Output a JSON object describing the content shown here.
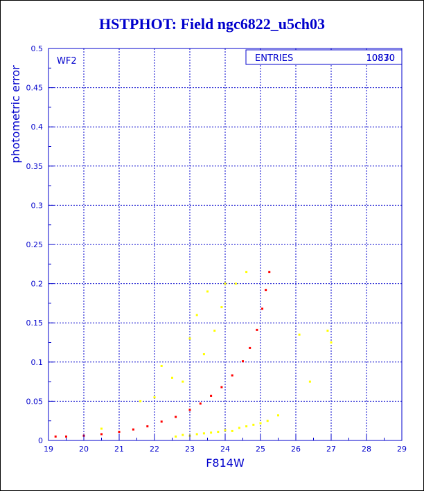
{
  "page_title": "HSTPHOT: Field ngc6822_u5ch03",
  "chart_data": {
    "type": "scatter",
    "title": "HSTPHOT: Field ngc6822_u5ch03",
    "panel_label": "WF2",
    "stats_box": {
      "label": "ENTRIES",
      "value": "10830",
      "overprint": "10870"
    },
    "xlabel": "F814W",
    "ylabel": "photometric error",
    "xlim": [
      19,
      29
    ],
    "ylim": [
      0,
      0.5
    ],
    "xticks": [
      "19",
      "20",
      "21",
      "22",
      "23",
      "24",
      "25",
      "26",
      "27",
      "28",
      "29"
    ],
    "yticks": [
      "0",
      "0.05",
      "0.1",
      "0.15",
      "0.2",
      "0.25",
      "0.3",
      "0.35",
      "0.4",
      "0.45",
      "0.5"
    ],
    "grid": true,
    "colors": {
      "axis": "#0000cc",
      "grid": "#0000cc",
      "primary": "#ff0000",
      "secondary": "#ffff00",
      "outlier": "#cccc00"
    },
    "series": [
      {
        "color": "#ff0000",
        "x": [
          19.2,
          19.5,
          20.0,
          20.5,
          21.0,
          21.4,
          21.8,
          22.2,
          22.6,
          23.0,
          23.3,
          23.6,
          23.9,
          24.2,
          24.5,
          24.7,
          24.9,
          25.05,
          25.15,
          25.25
        ],
        "y": [
          0.005,
          0.005,
          0.006,
          0.008,
          0.011,
          0.014,
          0.018,
          0.024,
          0.03,
          0.039,
          0.047,
          0.057,
          0.068,
          0.083,
          0.101,
          0.118,
          0.141,
          0.168,
          0.192,
          0.215
        ]
      },
      {
        "color": "#ffff00",
        "x": [
          20.5,
          21.6,
          22.0,
          22.2,
          22.5,
          22.8,
          23.0,
          23.2,
          23.4,
          23.5,
          23.7,
          23.9,
          24.0,
          24.3,
          24.6,
          22.6,
          22.8,
          23.0,
          23.2,
          23.4,
          23.6,
          23.8,
          24.0,
          24.2,
          24.4,
          24.6,
          24.8,
          25.0,
          25.2,
          25.5,
          26.1,
          26.4,
          26.9,
          27.0
        ],
        "y": [
          0.015,
          0.05,
          0.055,
          0.095,
          0.08,
          0.075,
          0.13,
          0.16,
          0.11,
          0.19,
          0.14,
          0.17,
          0.2,
          0.2,
          0.215,
          0.005,
          0.007,
          0.006,
          0.008,
          0.009,
          0.01,
          0.011,
          0.013,
          0.012,
          0.016,
          0.018,
          0.02,
          0.022,
          0.025,
          0.032,
          0.135,
          0.075,
          0.14,
          0.125
        ]
      }
    ]
  }
}
